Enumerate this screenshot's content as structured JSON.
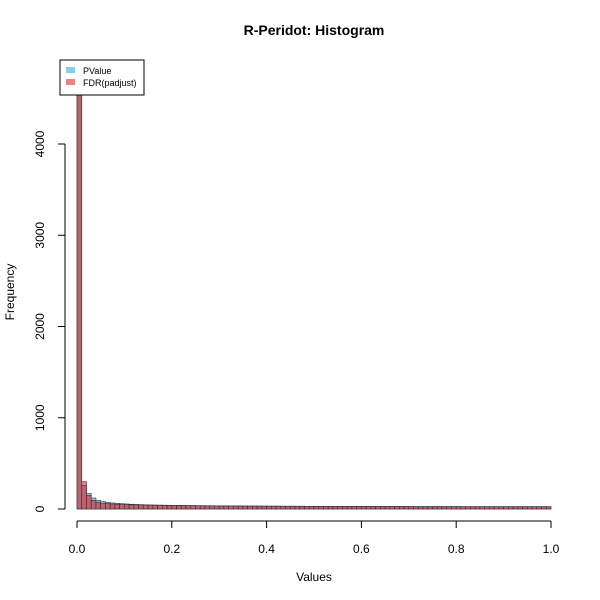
{
  "chart_data": {
    "type": "bar",
    "title": "R-Peridot: Histogram",
    "xlabel": "Values",
    "ylabel": "Frequency",
    "xlim": [
      0,
      1
    ],
    "ylim": [
      0,
      4800
    ],
    "x_ticks": [
      "0.0",
      "0.2",
      "0.4",
      "0.6",
      "0.8",
      "1.0"
    ],
    "y_ticks": [
      "0",
      "1000",
      "2000",
      "3000",
      "4000"
    ],
    "bin_width": 0.01,
    "grid": false,
    "legend_position": "top-left",
    "series": [
      {
        "name": "PValue",
        "color": "#87CEEB",
        "values": [
          4700,
          260,
          170,
          120,
          95,
          80,
          72,
          66,
          62,
          58,
          55,
          52,
          50,
          48,
          46,
          45,
          44,
          43,
          42,
          41,
          40,
          40,
          39,
          38,
          38,
          37,
          37,
          36,
          36,
          35,
          35,
          35,
          34,
          34,
          34,
          33,
          33,
          33,
          33,
          32,
          32,
          32,
          32,
          31,
          31,
          31,
          31,
          31,
          30,
          30,
          30,
          30,
          30,
          30,
          29,
          29,
          29,
          29,
          29,
          29,
          29,
          28,
          28,
          28,
          28,
          28,
          28,
          28,
          28,
          28,
          27,
          27,
          27,
          27,
          27,
          27,
          27,
          27,
          27,
          27,
          27,
          26,
          26,
          26,
          26,
          26,
          26,
          26,
          26,
          26,
          26,
          26,
          26,
          26,
          26,
          26,
          26,
          26,
          26,
          26
        ]
      },
      {
        "name": "FDR(padjust)",
        "color": "#F08080",
        "values": [
          4560,
          300,
          150,
          95,
          75,
          65,
          60,
          55,
          52,
          50,
          48,
          46,
          45,
          44,
          43,
          42,
          41,
          40,
          39,
          38,
          38,
          37,
          37,
          36,
          36,
          35,
          35,
          34,
          34,
          34,
          33,
          33,
          33,
          32,
          32,
          32,
          31,
          31,
          31,
          31,
          30,
          30,
          30,
          30,
          29,
          29,
          29,
          29,
          29,
          28,
          28,
          28,
          28,
          28,
          28,
          27,
          27,
          27,
          27,
          27,
          27,
          27,
          26,
          26,
          26,
          26,
          26,
          26,
          26,
          26,
          26,
          25,
          25,
          25,
          25,
          25,
          25,
          25,
          25,
          25,
          25,
          25,
          25,
          25,
          25,
          25,
          25,
          25,
          25,
          25,
          25,
          25,
          25,
          25,
          25,
          25,
          25,
          25,
          25,
          25
        ]
      }
    ],
    "overlap_color": "#C06070"
  }
}
